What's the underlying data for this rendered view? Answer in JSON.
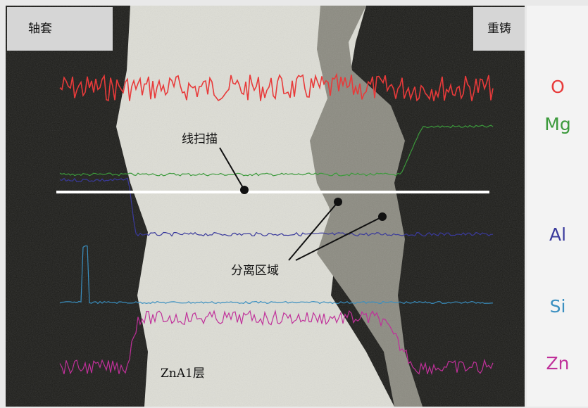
{
  "labels": {
    "left_region": "轴套",
    "right_region": "重铸",
    "scan_line": "线扫描",
    "separation_zone": "分离区域",
    "layer": "ZnA1层"
  },
  "elements": [
    {
      "symbol": "O",
      "color": "#e83a3a"
    },
    {
      "symbol": "Mg",
      "color": "#3c9a3c"
    },
    {
      "symbol": "Al",
      "color": "#3a3a9c"
    },
    {
      "symbol": "Si",
      "color": "#3a8fc0"
    },
    {
      "symbol": "Zn",
      "color": "#c0309a"
    }
  ]
}
